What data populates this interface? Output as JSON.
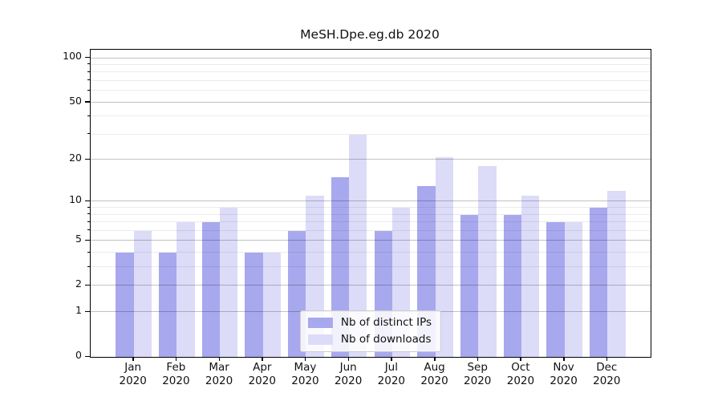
{
  "title": "MeSH.Dpe.eg.db 2020",
  "chart_data": {
    "type": "bar",
    "title": "MeSH.Dpe.eg.db 2020",
    "categories": [
      "Jan",
      "Feb",
      "Mar",
      "Apr",
      "May",
      "Jun",
      "Jul",
      "Aug",
      "Sep",
      "Oct",
      "Nov",
      "Dec"
    ],
    "category_year": "2020",
    "series": [
      {
        "name": "Nb of distinct IPs",
        "color": "#a8a8ee",
        "values": [
          4,
          4,
          7,
          4,
          6,
          15,
          6,
          13,
          8,
          8,
          7,
          9
        ]
      },
      {
        "name": "Nb of downloads",
        "color": "#dcdcf8",
        "values": [
          6,
          7,
          9,
          4,
          11,
          30,
          9,
          21,
          18,
          11,
          7,
          12
        ]
      }
    ],
    "xlabel": "",
    "ylabel": "",
    "y_axis": {
      "scale": "log10(value+1)",
      "ticks_major": [
        0,
        1,
        2,
        5,
        10,
        20,
        50,
        100
      ],
      "ticks_minor": [
        3,
        4,
        6,
        7,
        8,
        9,
        30,
        40,
        60,
        70,
        80,
        90
      ],
      "top_value": 114
    },
    "grid": "both, drawn above bars",
    "legend_position": "lower center"
  },
  "colors": {
    "background": "#ffffff",
    "bar_distinct_ips": "#a8a8ee",
    "bar_downloads": "#dcdcf8",
    "grid_major": "rgba(0,0,0,0.24)",
    "grid_minor": "rgba(0,0,0,0.08)",
    "axis": "#000000",
    "text": "#111111"
  }
}
